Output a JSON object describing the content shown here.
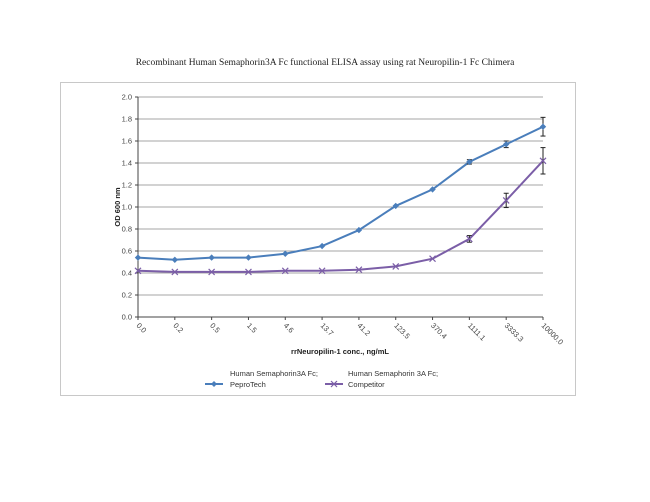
{
  "chart_data": {
    "type": "line",
    "title": "Recombinant Human Semaphorin3A Fc functional ELISA assay using rat Neuropilin-1 Fc Chimera",
    "xlabel": "rrNeuropilin-1 conc., ng/mL",
    "ylabel": "OD 600 nm",
    "ylim": [
      0.0,
      2.0
    ],
    "yticks": [
      "0.0",
      "0.2",
      "0.4",
      "0.6",
      "0.8",
      "1.0",
      "1.2",
      "1.4",
      "1.6",
      "1.8",
      "2.0"
    ],
    "grid": "horizontal",
    "legend_position": "bottom",
    "categories": [
      "0.0",
      "0.2",
      "0.5",
      "1.5",
      "4.6",
      "13.7",
      "41.2",
      "123.5",
      "370.4",
      "1111.1",
      "3333.3",
      "10000.0"
    ],
    "series": [
      {
        "name": "Human Semaphorin3A Fc; PeproTech",
        "legend_line1": "Human Semaphorin3A Fc;",
        "legend_line2": "PeproTech",
        "color": "#4a7ebb",
        "marker": "diamond",
        "values": [
          0.54,
          0.52,
          0.54,
          0.54,
          0.575,
          0.645,
          0.79,
          1.01,
          1.16,
          1.41,
          1.57,
          1.73
        ],
        "errors": [
          0,
          0,
          0,
          0,
          0,
          0,
          0,
          0,
          0,
          0.02,
          0.03,
          0.085
        ]
      },
      {
        "name": "Human Semaphorin 3A Fc; Competitor",
        "legend_line1": "Human Semaphorin 3A Fc;",
        "legend_line2": "Competitor",
        "color": "#7b5ea7",
        "marker": "x",
        "values": [
          0.42,
          0.41,
          0.41,
          0.41,
          0.42,
          0.42,
          0.43,
          0.46,
          0.53,
          0.71,
          1.06,
          1.42
        ],
        "errors": [
          0,
          0,
          0,
          0,
          0,
          0,
          0,
          0,
          0,
          0.03,
          0.065,
          0.12
        ]
      }
    ]
  }
}
